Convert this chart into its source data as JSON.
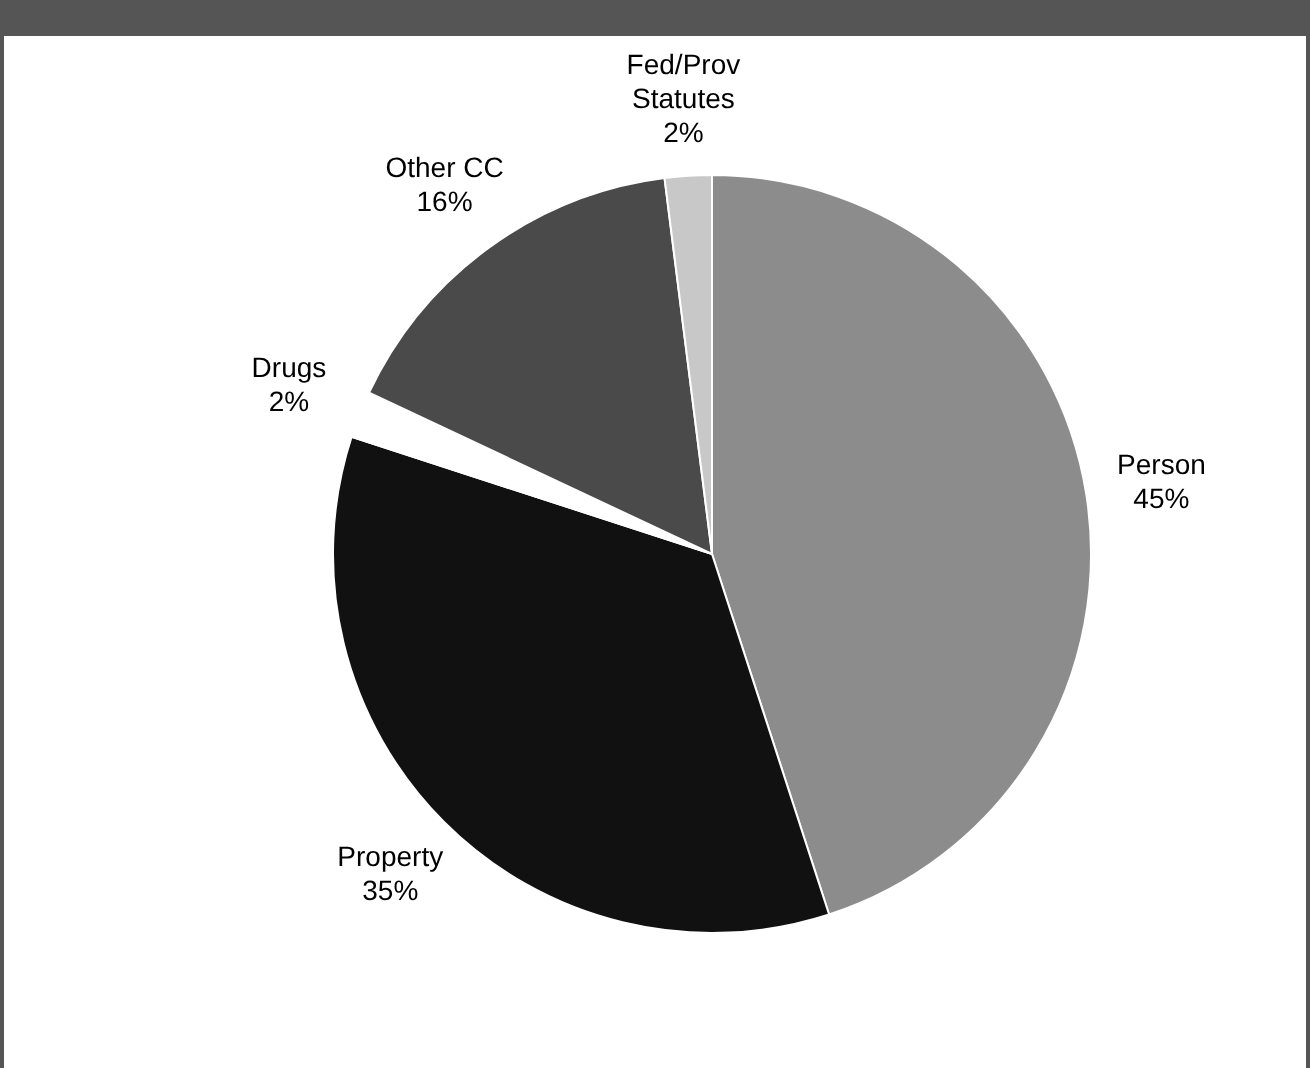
{
  "chart_data": {
    "type": "pie",
    "categories": [
      "Person",
      "Property",
      "Drugs",
      "Other CC",
      "Fed/Prov Statutes"
    ],
    "values": [
      45,
      35,
      2,
      16,
      2
    ],
    "value_labels": [
      "45%",
      "35%",
      "2%",
      "16%",
      "2%"
    ],
    "colors": [
      "#8c8c8c",
      "#111111",
      "#ffffff",
      "#4a4a4a",
      "#c8c8c8"
    ],
    "legend": false
  }
}
